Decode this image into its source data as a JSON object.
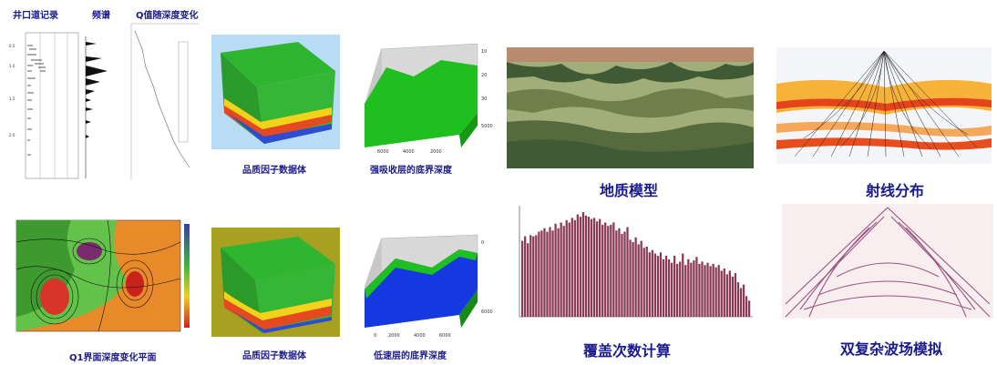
{
  "captions": {
    "well_log": "井口道记录",
    "spectrum": "频谱",
    "q_depth": "Q值随深度变化",
    "quality_cube_1": "品质因子数据体",
    "strong_absorb": "强吸收层的底界深度",
    "geo_model": "地质模型",
    "ray": "射线分布",
    "q1_plane": "Q1界面深度变化平面",
    "quality_cube_2": "品质因子数据体",
    "low_vel": "低速层的底界深度",
    "fold": "覆盖次数计算",
    "wavefield": "双复杂波场模拟"
  },
  "colors": {
    "caption": "#1a1a8c",
    "cube_top": "#2fb52f",
    "sky": "#b8dcf5",
    "surface_green": "#1fbf1f",
    "surface_blue": "#1638e0",
    "geo_top": "#b88a6e",
    "geo_dark": "#3f5a34",
    "geo_light": "#a2ae79",
    "bar": "#8a3a54"
  },
  "fold_chart": {
    "values": [
      66,
      70,
      64,
      71,
      70,
      71,
      74,
      75,
      77,
      74,
      78,
      75,
      81,
      77,
      82,
      79,
      84,
      82,
      86,
      84,
      89,
      87,
      91,
      88,
      87,
      85,
      86,
      83,
      85,
      80,
      82,
      79,
      80,
      82,
      75,
      77,
      72,
      74,
      78,
      67,
      65,
      69,
      63,
      66,
      60,
      61,
      56,
      58,
      55,
      53,
      56,
      50,
      53,
      50,
      47,
      53,
      46,
      48,
      55,
      45,
      50,
      47,
      49,
      52,
      46,
      48,
      45,
      47,
      44,
      46,
      43,
      45,
      40,
      42,
      37,
      40,
      35,
      38,
      30,
      25,
      28,
      18,
      14
    ]
  }
}
